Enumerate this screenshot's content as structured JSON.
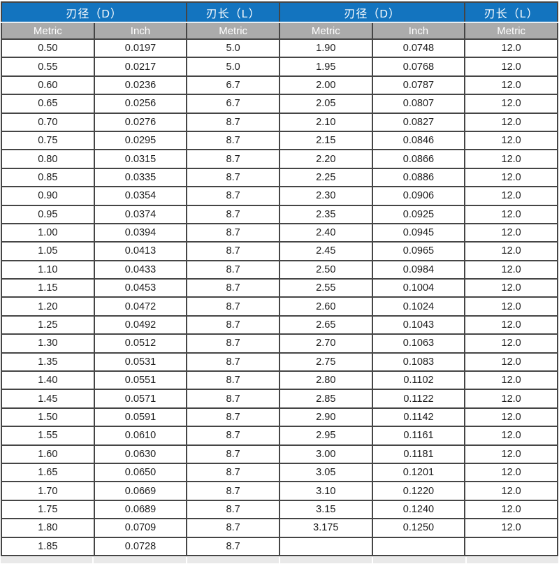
{
  "colors": {
    "header_blue": "#1374bf",
    "header_gray": "#ababab",
    "border_dark": "#454545",
    "cell_text": "#1d1d1d",
    "header_text": "#ffffff",
    "cutoff_strip": "#e9e9e9"
  },
  "table": {
    "header_groups": [
      {
        "label": "刃径（D）",
        "colspan": 2
      },
      {
        "label": "刃长（L）",
        "colspan": 1
      },
      {
        "label": "刃径（D）",
        "colspan": 2
      },
      {
        "label": "刃长（L）",
        "colspan": 1
      }
    ],
    "sub_headers": [
      "Metric",
      "Inch",
      "Metric",
      "Metric",
      "Inch",
      "Metric"
    ],
    "rows": [
      [
        "0.50",
        "0.0197",
        "5.0",
        "1.90",
        "0.0748",
        "12.0"
      ],
      [
        "0.55",
        "0.0217",
        "5.0",
        "1.95",
        "0.0768",
        "12.0"
      ],
      [
        "0.60",
        "0.0236",
        "6.7",
        "2.00",
        "0.0787",
        "12.0"
      ],
      [
        "0.65",
        "0.0256",
        "6.7",
        "2.05",
        "0.0807",
        "12.0"
      ],
      [
        "0.70",
        "0.0276",
        "8.7",
        "2.10",
        "0.0827",
        "12.0"
      ],
      [
        "0.75",
        "0.0295",
        "8.7",
        "2.15",
        "0.0846",
        "12.0"
      ],
      [
        "0.80",
        "0.0315",
        "8.7",
        "2.20",
        "0.0866",
        "12.0"
      ],
      [
        "0.85",
        "0.0335",
        "8.7",
        "2.25",
        "0.0886",
        "12.0"
      ],
      [
        "0.90",
        "0.0354",
        "8.7",
        "2.30",
        "0.0906",
        "12.0"
      ],
      [
        "0.95",
        "0.0374",
        "8.7",
        "2.35",
        "0.0925",
        "12.0"
      ],
      [
        "1.00",
        "0.0394",
        "8.7",
        "2.40",
        "0.0945",
        "12.0"
      ],
      [
        "1.05",
        "0.0413",
        "8.7",
        "2.45",
        "0.0965",
        "12.0"
      ],
      [
        "1.10",
        "0.0433",
        "8.7",
        "2.50",
        "0.0984",
        "12.0"
      ],
      [
        "1.15",
        "0.0453",
        "8.7",
        "2.55",
        "0.1004",
        "12.0"
      ],
      [
        "1.20",
        "0.0472",
        "8.7",
        "2.60",
        "0.1024",
        "12.0"
      ],
      [
        "1.25",
        "0.0492",
        "8.7",
        "2.65",
        "0.1043",
        "12.0"
      ],
      [
        "1.30",
        "0.0512",
        "8.7",
        "2.70",
        "0.1063",
        "12.0"
      ],
      [
        "1.35",
        "0.0531",
        "8.7",
        "2.75",
        "0.1083",
        "12.0"
      ],
      [
        "1.40",
        "0.0551",
        "8.7",
        "2.80",
        "0.1102",
        "12.0"
      ],
      [
        "1.45",
        "0.0571",
        "8.7",
        "2.85",
        "0.1122",
        "12.0"
      ],
      [
        "1.50",
        "0.0591",
        "8.7",
        "2.90",
        "0.1142",
        "12.0"
      ],
      [
        "1.55",
        "0.0610",
        "8.7",
        "2.95",
        "0.1161",
        "12.0"
      ],
      [
        "1.60",
        "0.0630",
        "8.7",
        "3.00",
        "0.1181",
        "12.0"
      ],
      [
        "1.65",
        "0.0650",
        "8.7",
        "3.05",
        "0.1201",
        "12.0"
      ],
      [
        "1.70",
        "0.0669",
        "8.7",
        "3.10",
        "0.1220",
        "12.0"
      ],
      [
        "1.75",
        "0.0689",
        "8.7",
        "3.15",
        "0.1240",
        "12.0"
      ],
      [
        "1.80",
        "0.0709",
        "8.7",
        "3.175",
        "0.1250",
        "12.0"
      ],
      [
        "1.85",
        "0.0728",
        "8.7",
        "",
        "",
        ""
      ]
    ]
  }
}
